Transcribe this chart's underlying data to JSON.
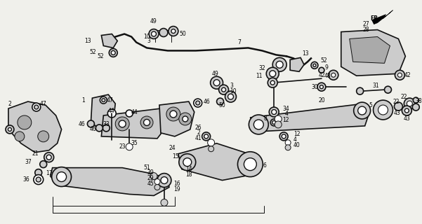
{
  "bg_color": "#f5f5f0",
  "line_color": "#1a1a1a",
  "fig_width": 6.01,
  "fig_height": 3.2,
  "dpi": 100
}
